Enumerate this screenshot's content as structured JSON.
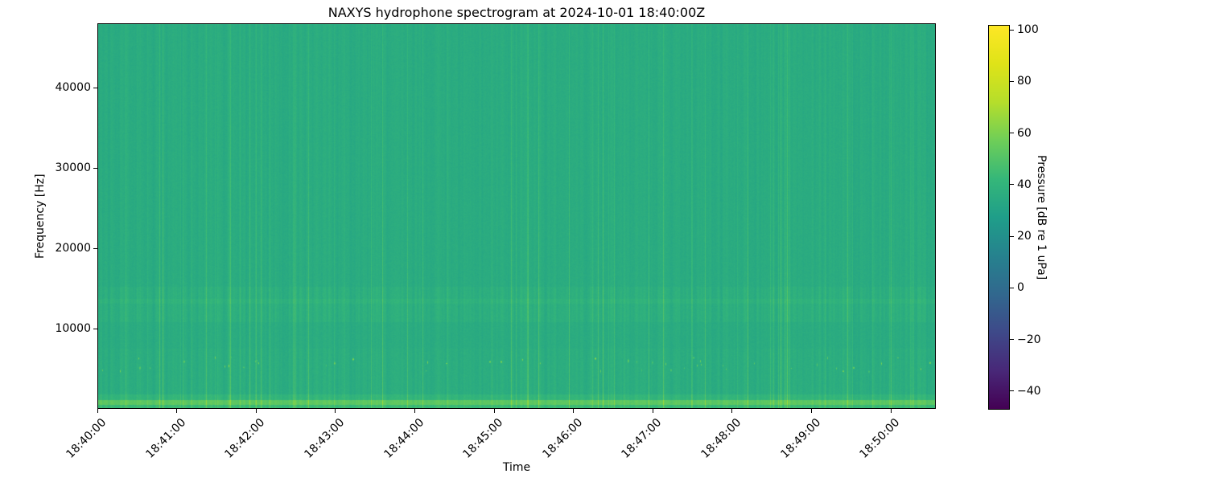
{
  "figure": {
    "title": "NAXYS hydrophone spectrogram at 2024-10-01 18:40:00Z",
    "background_color": "#ffffff"
  },
  "chart_data": {
    "type": "heatmap",
    "subtype": "spectrogram",
    "title": "NAXYS hydrophone spectrogram at 2024-10-01 18:40:00Z",
    "xlabel": "Time",
    "ylabel": "Frequency [Hz]",
    "grid": false,
    "x_axis": {
      "tick_labels": [
        "18:40:00",
        "18:41:00",
        "18:42:00",
        "18:43:00",
        "18:44:00",
        "18:45:00",
        "18:46:00",
        "18:47:00",
        "18:48:00",
        "18:49:00",
        "18:50:00"
      ],
      "tick_seconds": [
        0,
        60,
        120,
        180,
        240,
        300,
        360,
        420,
        480,
        540,
        600
      ],
      "range_seconds": [
        0,
        634
      ],
      "label_rotation_deg": 45
    },
    "y_axis": {
      "ticks": [
        10000,
        20000,
        30000,
        40000
      ],
      "range_hz": [
        0,
        48000
      ]
    },
    "colorbar": {
      "label": "Pressure [dB re 1 uPa]",
      "ticks": [
        100,
        80,
        60,
        40,
        20,
        0,
        -20,
        -40
      ],
      "vmin": -47.2,
      "vmax": 101.9,
      "colormap": "viridis",
      "colormap_stops": [
        "#440154",
        "#482878",
        "#3e4989",
        "#31688e",
        "#26828e",
        "#1f9e89",
        "#35b779",
        "#6ece58",
        "#b5de2b",
        "#dfe318",
        "#fde725"
      ]
    },
    "content_features": {
      "background_level_db": 40,
      "background_level_t": 0.555,
      "texture": "fine vertical striations across all frequencies (per-time-column level noise), occasional brighter broadband vertical lines",
      "broadband_bright_band_hz": [
        10800,
        15200
      ],
      "narrow_bright_line_hz": [
        13100,
        13700
      ],
      "low_freq_textured_below_hz": 7500,
      "bottom_bright_stripe_hz": [
        450,
        1100
      ],
      "bottom_edge_band_hz": [
        0,
        450
      ],
      "transient_dash_band_hz": [
        4600,
        6400
      ],
      "transient_dashes": "short bright tonal bursts near 5-6 kHz scattered through the whole record"
    }
  }
}
